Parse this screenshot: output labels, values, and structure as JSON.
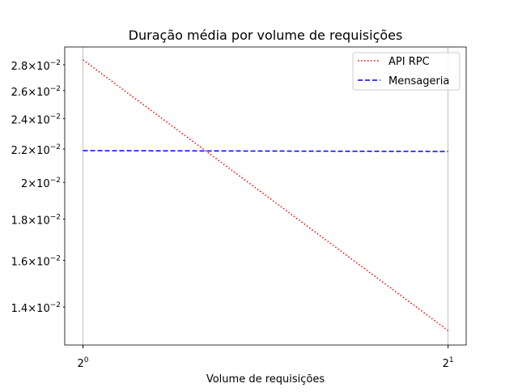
{
  "chart_data": {
    "type": "line",
    "title": "Duração média por volume de requisições",
    "x_label": "Volume de requisições",
    "x": [
      1,
      2
    ],
    "series": [
      {
        "name": "API RPC",
        "color": "#ff0000",
        "style": "dotted",
        "values": [
          0.02839,
          0.01309
        ]
      },
      {
        "name": "Mensageria",
        "color": "#0000ff",
        "style": "dashed",
        "values": [
          0.0219,
          0.02185
        ]
      }
    ],
    "xscale": "log",
    "xbase": 2,
    "yscale": "log",
    "xlim": [
      0.966,
      2.07
    ],
    "ylim": [
      0.01256,
      0.02946
    ],
    "xticks": [
      {
        "value": 1,
        "label": "20"
      },
      {
        "value": 2,
        "label": "21"
      }
    ],
    "yticks": [
      {
        "value": 0.014,
        "label": "1.4×10−2"
      },
      {
        "value": 0.016,
        "label": "1.6×10−2"
      },
      {
        "value": 0.018,
        "label": "1.8×10−2"
      },
      {
        "value": 0.02,
        "label": "2×10−2"
      },
      {
        "value": 0.022,
        "label": "2.2×10−2"
      },
      {
        "value": 0.024,
        "label": "2.4×10−2"
      },
      {
        "value": 0.026,
        "label": "2.6×10−2"
      },
      {
        "value": 0.028,
        "label": "2.8×10−2"
      }
    ],
    "xgrid": true,
    "legend": "upper right"
  }
}
